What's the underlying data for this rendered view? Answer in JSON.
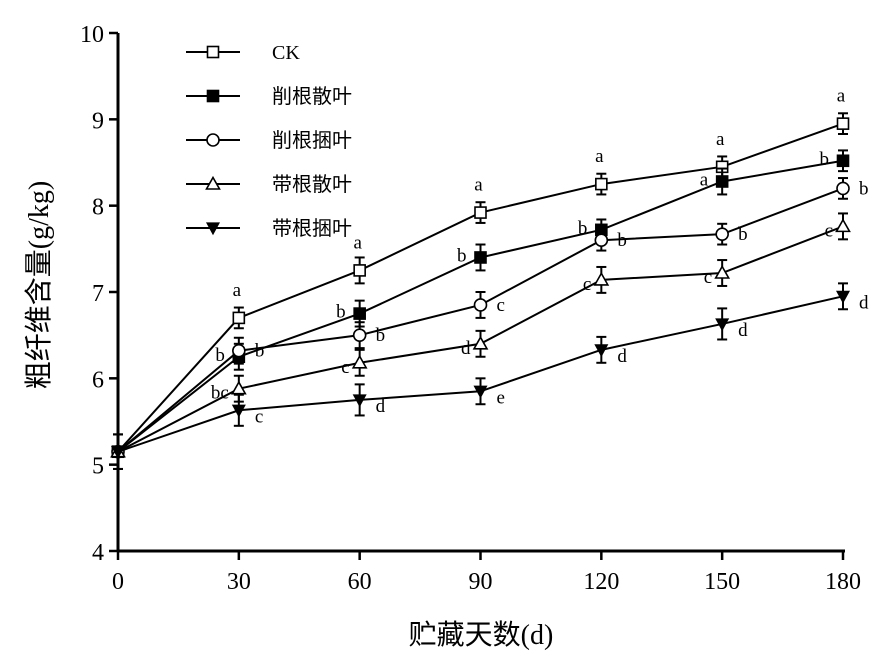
{
  "chart_data": {
    "type": "line",
    "title": "",
    "xlabel": "贮藏天数(d)",
    "ylabel": "粗纤维含量(g/kg)",
    "x": [
      0,
      30,
      60,
      90,
      120,
      150,
      180
    ],
    "x_ticks": [
      "0",
      "30",
      "60",
      "90",
      "120",
      "150",
      "180"
    ],
    "xlim": [
      0,
      180
    ],
    "ylim": [
      4,
      10
    ],
    "y_ticks": [
      "4",
      "5",
      "6",
      "7",
      "8",
      "9",
      "10"
    ],
    "grid": false,
    "legend_position": "top-left",
    "series": [
      {
        "name": "CK",
        "marker": "square-open",
        "values": [
          5.15,
          6.7,
          7.25,
          7.92,
          8.25,
          8.45,
          8.95
        ],
        "errors": [
          0.2,
          0.12,
          0.15,
          0.12,
          0.12,
          0.12,
          0.12
        ],
        "letters": [
          "",
          "a",
          "a",
          "a",
          "a",
          "a",
          "a"
        ]
      },
      {
        "name": "削根散叶",
        "marker": "square-filled",
        "values": [
          5.15,
          6.25,
          6.75,
          7.4,
          7.72,
          8.28,
          8.52
        ],
        "errors": [
          0.2,
          0.15,
          0.15,
          0.15,
          0.12,
          0.15,
          0.12
        ],
        "letters": [
          "",
          "b",
          "b",
          "b",
          "b",
          "a",
          "b"
        ]
      },
      {
        "name": "削根捆叶",
        "marker": "circle-open",
        "values": [
          5.15,
          6.32,
          6.5,
          6.85,
          7.6,
          7.67,
          8.2
        ],
        "errors": [
          0.2,
          0.15,
          0.15,
          0.15,
          0.12,
          0.12,
          0.12
        ],
        "letters": [
          "",
          "b",
          "b",
          "c",
          "b",
          "b",
          "b"
        ]
      },
      {
        "name": "带根散叶",
        "marker": "triangle-up-open",
        "values": [
          5.15,
          5.88,
          6.18,
          6.4,
          7.14,
          7.22,
          7.76
        ],
        "errors": [
          0.2,
          0.15,
          0.15,
          0.15,
          0.15,
          0.15,
          0.15
        ],
        "letters": [
          "",
          "bc",
          "c",
          "d",
          "c",
          "c",
          "c"
        ]
      },
      {
        "name": "带根捆叶",
        "marker": "triangle-down-filled",
        "values": [
          5.15,
          5.63,
          5.75,
          5.85,
          6.33,
          6.63,
          6.95
        ],
        "errors": [
          0.2,
          0.18,
          0.18,
          0.15,
          0.15,
          0.18,
          0.15
        ],
        "letters": [
          "",
          "c",
          "d",
          "e",
          "d",
          "d",
          "d"
        ]
      }
    ]
  }
}
